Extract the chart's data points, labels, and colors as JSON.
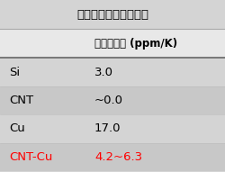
{
  "title": "各種材料の熱膨張係数",
  "col_header": "熱膨張係数 (ppm/K)",
  "rows": [
    {
      "material": "Si",
      "value": "3.0",
      "color": "#000000"
    },
    {
      "material": "CNT",
      "value": "~0.0",
      "color": "#000000"
    },
    {
      "material": "Cu",
      "value": "17.0",
      "color": "#000000"
    },
    {
      "material": "CNT-Cu",
      "value": "4.2~6.3",
      "color": "#ff0000"
    }
  ],
  "bg_color": "#d4d4d4",
  "row_alt_color": "#c8c8c8",
  "header_bg": "#e8e8e8",
  "title_color": "#000000",
  "fig_bg": "#d4d4d4",
  "title_fontsize": 9.5,
  "header_fontsize": 8.5,
  "row_fontsize": 9.5
}
